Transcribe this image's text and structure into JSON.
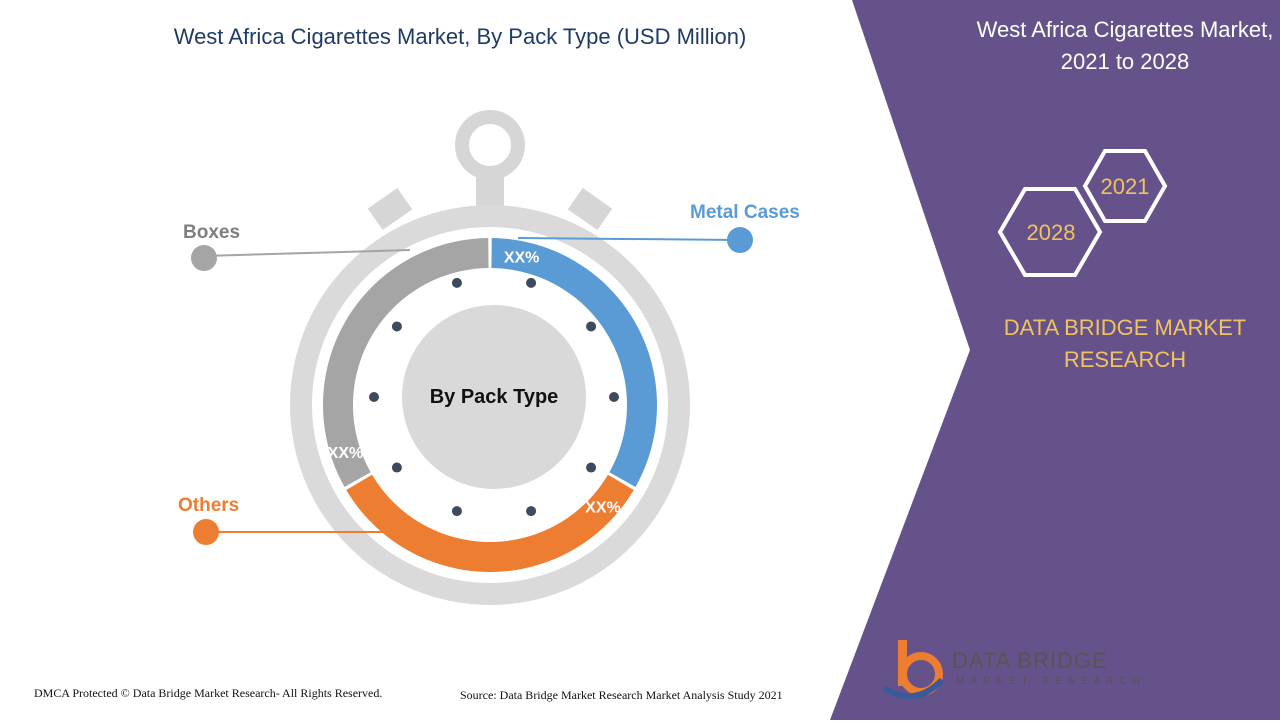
{
  "title": "West Africa Cigarettes Market, By Pack Type (USD Million)",
  "panel": {
    "title_line1": "West Africa Cigarettes Market,",
    "title_line2": "2021 to 2028",
    "year_start": "2021",
    "year_end": "2028",
    "brand_line1": "DATA BRIDGE MARKET",
    "brand_line2": "RESEARCH"
  },
  "footer": {
    "left": "DMCA Protected © Data Bridge Market Research- All Rights Reserved.",
    "right": "Source: Data Bridge Market Research Market Analysis Study 2021"
  },
  "logo": {
    "line1": "DATA BRIDGE",
    "line2": "MARKET RESEARCH"
  },
  "colors": {
    "metal_cases": "#5b9bd5",
    "others": "#ed7d31",
    "boxes": "#a5a5a5",
    "panel": "#65528a",
    "brand_gold": "#f2c25e"
  },
  "chart_data": {
    "type": "pie",
    "variant": "donut",
    "center_label": "By Pack Type",
    "categories": [
      "Metal Cases",
      "Others",
      "Boxes"
    ],
    "values": [
      33.3,
      33.3,
      33.3
    ],
    "data_labels": [
      "XX%",
      "XX%",
      "XX%"
    ],
    "legend_placement": "callouts"
  }
}
